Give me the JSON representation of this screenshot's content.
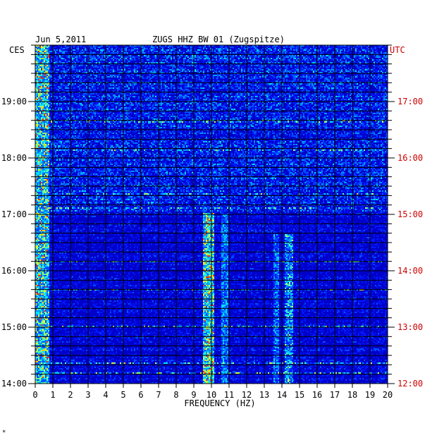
{
  "chart_data": {
    "type": "heatmap",
    "title": "ZUGS HHZ BW 01 (Zugspitze)",
    "date": "Jun 5,2011",
    "xlabel": "FREQUENCY (HZ)",
    "left_axis_label": "CES",
    "right_axis_label": "UTC",
    "xlim": [
      0,
      20
    ],
    "x_ticks": [
      0,
      1,
      2,
      3,
      4,
      5,
      6,
      7,
      8,
      9,
      10,
      11,
      12,
      13,
      14,
      15,
      16,
      17,
      18,
      19,
      20
    ],
    "left_ticks": [
      "19:00",
      "18:00",
      "17:00",
      "16:00",
      "15:00",
      "14:00"
    ],
    "right_ticks": [
      "17:00",
      "16:00",
      "15:00",
      "14:00",
      "13:00",
      "12:00"
    ],
    "colors": {
      "background": "#0000c8",
      "grid": "#000000",
      "utc_text": "#cc0000"
    }
  },
  "footer_mark": "*"
}
